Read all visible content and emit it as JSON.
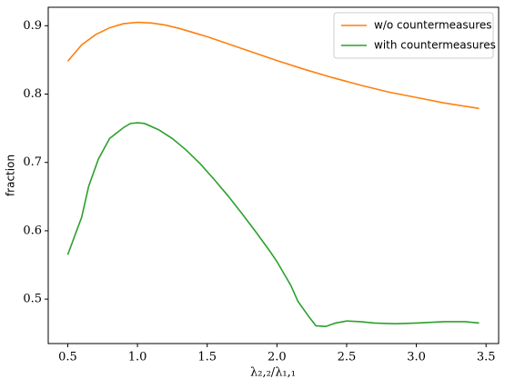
{
  "chart_data": {
    "type": "line",
    "xlabel": "λ₂,₂/λ₁,₁",
    "ylabel": "fraction",
    "xlim": [
      0.36,
      3.59
    ],
    "xticks": [
      0.5,
      {
        "value": 1,
        "label": "1.0"
      },
      1.5,
      {
        "value": 2,
        "label": "2.0"
      },
      2.5,
      {
        "value": 3,
        "label": "3.0"
      },
      3.5
    ],
    "ylim": [
      0.435,
      0.927
    ],
    "yticks": [
      0.5,
      0.6,
      0.7,
      0.8,
      0.9
    ],
    "legend": "upper right",
    "series": [
      {
        "name": "w/o countermeasures",
        "color": "#ff7f0e",
        "x": [
          0.5,
          0.6,
          0.7,
          0.8,
          0.9,
          1.0,
          1.1,
          1.2,
          1.3,
          1.4,
          1.5,
          1.6,
          1.7,
          1.8,
          1.9,
          2.0,
          2.2,
          2.4,
          2.6,
          2.8,
          3.0,
          3.2,
          3.45
        ],
        "values": [
          0.848,
          0.872,
          0.887,
          0.897,
          0.903,
          0.905,
          0.904,
          0.901,
          0.896,
          0.89,
          0.884,
          0.877,
          0.87,
          0.863,
          0.856,
          0.849,
          0.836,
          0.824,
          0.813,
          0.803,
          0.795,
          0.787,
          0.779
        ]
      },
      {
        "name": "with countermeasures",
        "color": "#2ca02c",
        "x": [
          0.5,
          0.6,
          0.65,
          0.72,
          0.8,
          0.9,
          0.95,
          1.0,
          1.05,
          1.15,
          1.25,
          1.35,
          1.45,
          1.55,
          1.65,
          1.75,
          1.85,
          1.95,
          2.0,
          2.1,
          2.15,
          2.23,
          2.28,
          2.35,
          2.42,
          2.5,
          2.6,
          2.7,
          2.85,
          3.0,
          3.2,
          3.35,
          3.45
        ],
        "values": [
          0.565,
          0.62,
          0.665,
          0.705,
          0.735,
          0.751,
          0.757,
          0.758,
          0.757,
          0.748,
          0.735,
          0.718,
          0.698,
          0.675,
          0.651,
          0.625,
          0.598,
          0.57,
          0.555,
          0.52,
          0.497,
          0.474,
          0.461,
          0.46,
          0.465,
          0.468,
          0.467,
          0.465,
          0.464,
          0.465,
          0.467,
          0.467,
          0.465
        ]
      }
    ]
  }
}
